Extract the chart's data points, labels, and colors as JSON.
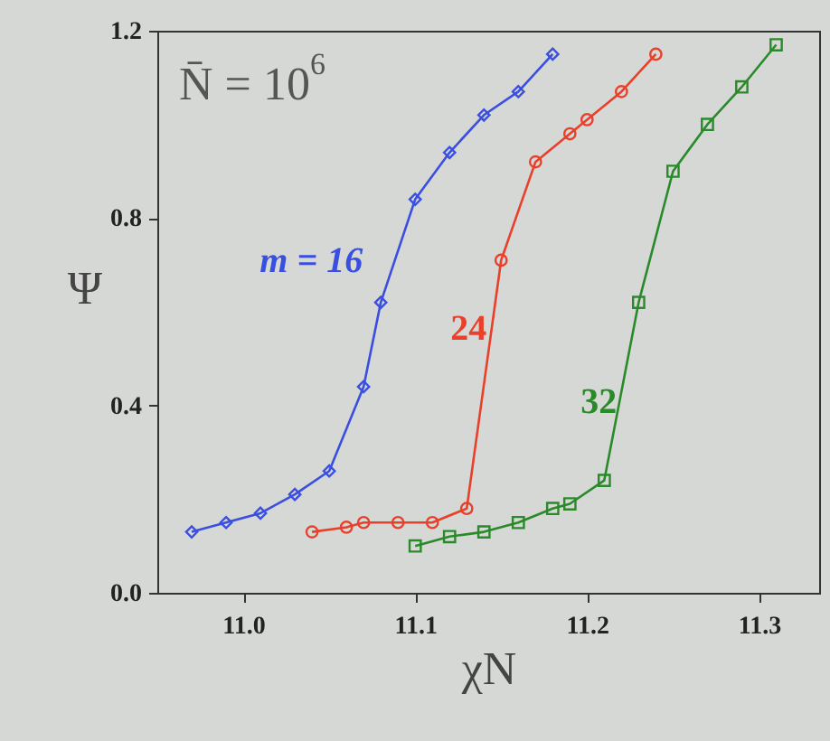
{
  "chart_data": {
    "type": "line",
    "xlabel": "χN",
    "ylabel": "Ψ",
    "annotations": [
      "N̄ = 10$^{6}$"
    ],
    "xlim": [
      10.95,
      11.335
    ],
    "xticks": [
      {
        "value": 11.0,
        "label": "11.0"
      },
      11.1,
      11.2,
      11.3
    ],
    "ylim": [
      0,
      1.2
    ],
    "yticks": [
      {
        "value": 0,
        "label": "0.0"
      },
      0.4,
      0.8,
      1.2
    ],
    "grid": false,
    "series": [
      {
        "name": "m = 16",
        "color": "#3a4fe0",
        "marker": "diamond",
        "x": [
          10.97,
          10.99,
          11.01,
          11.03,
          11.05,
          11.07,
          11.08,
          11.1,
          11.12,
          11.14,
          11.16,
          11.18
        ],
        "values": [
          0.13,
          0.15,
          0.17,
          0.21,
          0.26,
          0.44,
          0.62,
          0.84,
          0.94,
          1.02,
          1.07,
          1.15
        ]
      },
      {
        "name": "24",
        "color": "#e8402a",
        "marker": "circle",
        "x": [
          11.04,
          11.06,
          11.07,
          11.09,
          11.11,
          11.13,
          11.15,
          11.17,
          11.19,
          11.2,
          11.22,
          11.24
        ],
        "values": [
          0.13,
          0.14,
          0.15,
          0.15,
          0.15,
          0.18,
          0.71,
          0.92,
          0.98,
          1.01,
          1.07,
          1.15
        ]
      },
      {
        "name": "32",
        "color": "#2a8a2a",
        "marker": "square",
        "x": [
          11.1,
          11.12,
          11.14,
          11.16,
          11.18,
          11.19,
          11.21,
          11.23,
          11.25,
          11.27,
          11.29,
          11.31
        ],
        "values": [
          0.1,
          0.12,
          0.13,
          0.15,
          0.18,
          0.19,
          0.24,
          0.62,
          0.9,
          1.0,
          1.08,
          1.17
        ]
      }
    ]
  }
}
